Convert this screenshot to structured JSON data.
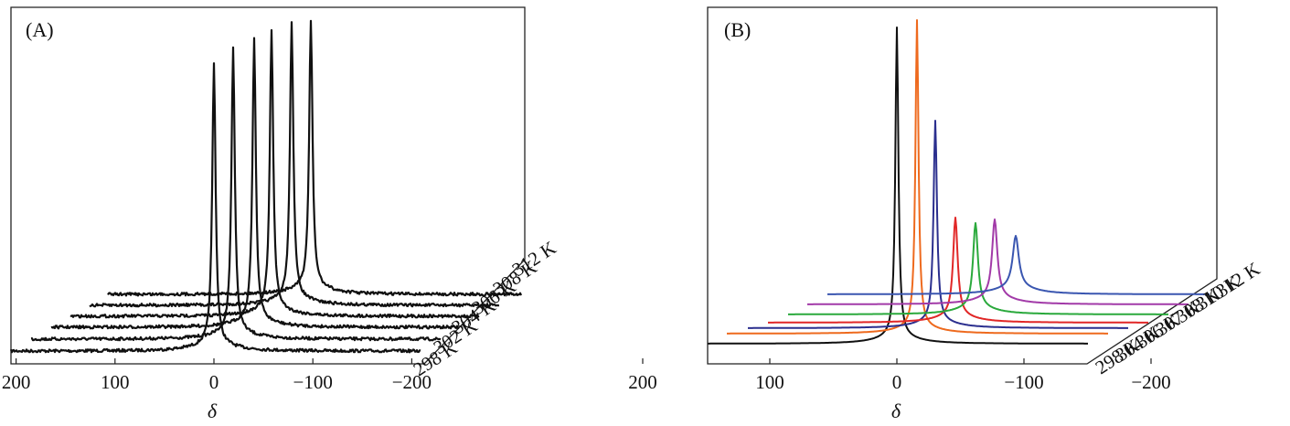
{
  "figure": {
    "colors": {
      "ink": "#111111",
      "frame": "#222222"
    }
  },
  "chart_data": [
    {
      "type": "line",
      "panel_label": "(A)",
      "xlabel": "δ",
      "x_ticks": [
        200,
        100,
        0,
        -100,
        -200
      ],
      "x_tick_labels": [
        "200",
        "100",
        "0",
        "−100",
        "−200"
      ],
      "xlim": [
        300,
        -295
      ],
      "depth_axis": "temperature",
      "series": [
        {
          "name": "298 K",
          "color": "#111111",
          "peak_x": 0,
          "peak_height": 1.0,
          "width": 2.2,
          "left_x": 300,
          "right_x": -295,
          "noise": true
        },
        {
          "name": "302 K",
          "color": "#111111",
          "peak_x": 0,
          "peak_height": 1.0,
          "width": 2.2,
          "left_x": 300,
          "right_x": -295,
          "noise": true
        },
        {
          "name": "304 K",
          "color": "#111111",
          "peak_x": 0,
          "peak_height": 1.0,
          "width": 2.2,
          "left_x": 300,
          "right_x": -295,
          "noise": true
        },
        {
          "name": "306 K",
          "color": "#111111",
          "peak_x": 0,
          "peak_height": 1.0,
          "width": 2.2,
          "left_x": 300,
          "right_x": -295,
          "noise": true
        },
        {
          "name": "308 K",
          "color": "#111111",
          "peak_x": 0,
          "peak_height": 1.0,
          "width": 2.2,
          "left_x": 300,
          "right_x": -295,
          "noise": true
        },
        {
          "name": "312 K",
          "color": "#111111",
          "peak_x": 0,
          "peak_height": 1.0,
          "width": 2.2,
          "left_x": 300,
          "right_x": -295,
          "noise": true
        }
      ],
      "depth_labels": [
        "298 K",
        "302 K",
        "304 K",
        "306 K",
        "308 K",
        "312 K"
      ]
    },
    {
      "type": "line",
      "panel_label": "(B)",
      "xlabel": "δ",
      "x_ticks": [
        200,
        100,
        0,
        -100,
        -200
      ],
      "x_tick_labels": [
        "200",
        "100",
        "0",
        "−100",
        "−200"
      ],
      "xlim": [
        290,
        -285
      ],
      "depth_axis": "temperature",
      "series": [
        {
          "name": "298 K",
          "color": "#111111",
          "peak_x": 0,
          "peak_height": 1.0,
          "width": 2.0,
          "left_x": 290,
          "right_x": -285,
          "noise": false
        },
        {
          "name": "304 K",
          "color": "#ee6a1e",
          "peak_x": 0,
          "peak_height": 1.0,
          "width": 2.0,
          "left_x": 290,
          "right_x": -285,
          "noise": false
        },
        {
          "name": "306 K",
          "color": "#2b2f8e",
          "peak_x": 0,
          "peak_height": 0.67,
          "width": 2.2,
          "left_x": 290,
          "right_x": -285,
          "noise": false
        },
        {
          "name": "307 K",
          "color": "#e12727",
          "peak_x": 0,
          "peak_height": 0.31,
          "width": 3.0,
          "left_x": 290,
          "right_x": -285,
          "noise": false
        },
        {
          "name": "308 K",
          "color": "#2aa93c",
          "peak_x": 0,
          "peak_height": 0.29,
          "width": 3.2,
          "left_x": 290,
          "right_x": -285,
          "noise": false
        },
        {
          "name": "310 K",
          "color": "#a23aa8",
          "peak_x": 0,
          "peak_height": 0.29,
          "width": 3.4,
          "left_x": 290,
          "right_x": -285,
          "noise": false
        },
        {
          "name": "312 K",
          "color": "#3a56b0",
          "peak_x": 0,
          "peak_height": 0.27,
          "width": 4.0,
          "left_x": 290,
          "right_x": -285,
          "noise": false
        }
      ],
      "depth_labels": [
        "298 K",
        "304 K",
        "306 K",
        "307 K",
        "308 K",
        "310 K",
        "312 K"
      ]
    }
  ]
}
